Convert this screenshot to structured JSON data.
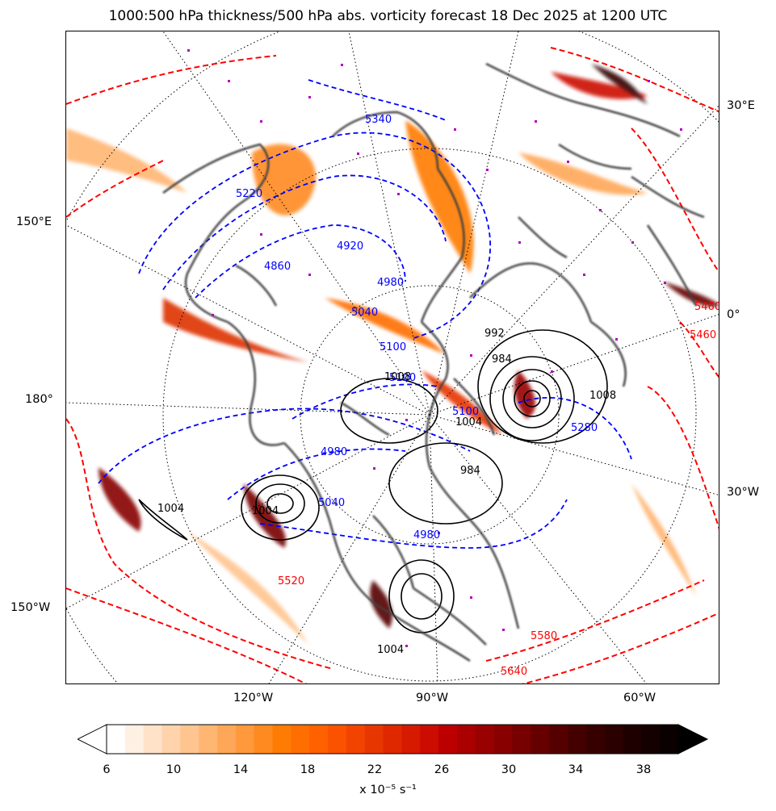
{
  "title": "1000:500 hPa thickness/500 hPa abs. vorticity forecast 18 Dec 2025 at 1200 UTC",
  "map": {
    "lon_labels_left": [
      "150°E",
      "180°",
      "150°W"
    ],
    "lon_labels_right": [
      "30°E",
      "0°",
      "30°W"
    ],
    "lon_labels_bottom": [
      "120°W",
      "90°W",
      "60°W"
    ],
    "contour_labels": {
      "thickness_cold": [
        "5340",
        "5220",
        "4920",
        "4860",
        "4980",
        "5040",
        "5100",
        "5100",
        "5100",
        "4980",
        "4980",
        "5280",
        "5040"
      ],
      "thickness_warm": [
        "5580",
        "5640",
        "5460",
        "5460",
        "5520"
      ],
      "pressure": [
        "1004",
        "984",
        "1004",
        "984",
        "1008",
        "1004",
        "1004",
        "1008",
        "992"
      ]
    },
    "colors": {
      "thickness_cold": "#0000ff",
      "thickness_warm": "#ff0000",
      "pressure": "#000000",
      "coastline": "#404040",
      "marker": "#b000c0",
      "graticule": "#000000"
    }
  },
  "colorbar": {
    "ticks": [
      "6",
      "10",
      "14",
      "18",
      "22",
      "26",
      "30",
      "34",
      "38"
    ],
    "unit_label": "x 10⁻⁵ s⁻¹",
    "colors": [
      "#ffffff",
      "#fff0e4",
      "#ffe2c8",
      "#ffd3ac",
      "#ffc590",
      "#ffb673",
      "#ffa758",
      "#ff993c",
      "#ff8a20",
      "#ff7c04",
      "#ff6e00",
      "#ff6000",
      "#fb5200",
      "#f24400",
      "#e83600",
      "#df2800",
      "#d51a00",
      "#cc0c00",
      "#bc0000",
      "#aa0000",
      "#990000",
      "#880000",
      "#770000",
      "#660000",
      "#550000",
      "#440000",
      "#360000",
      "#2a0000",
      "#1f0000",
      "#150000",
      "#0a0000"
    ]
  }
}
